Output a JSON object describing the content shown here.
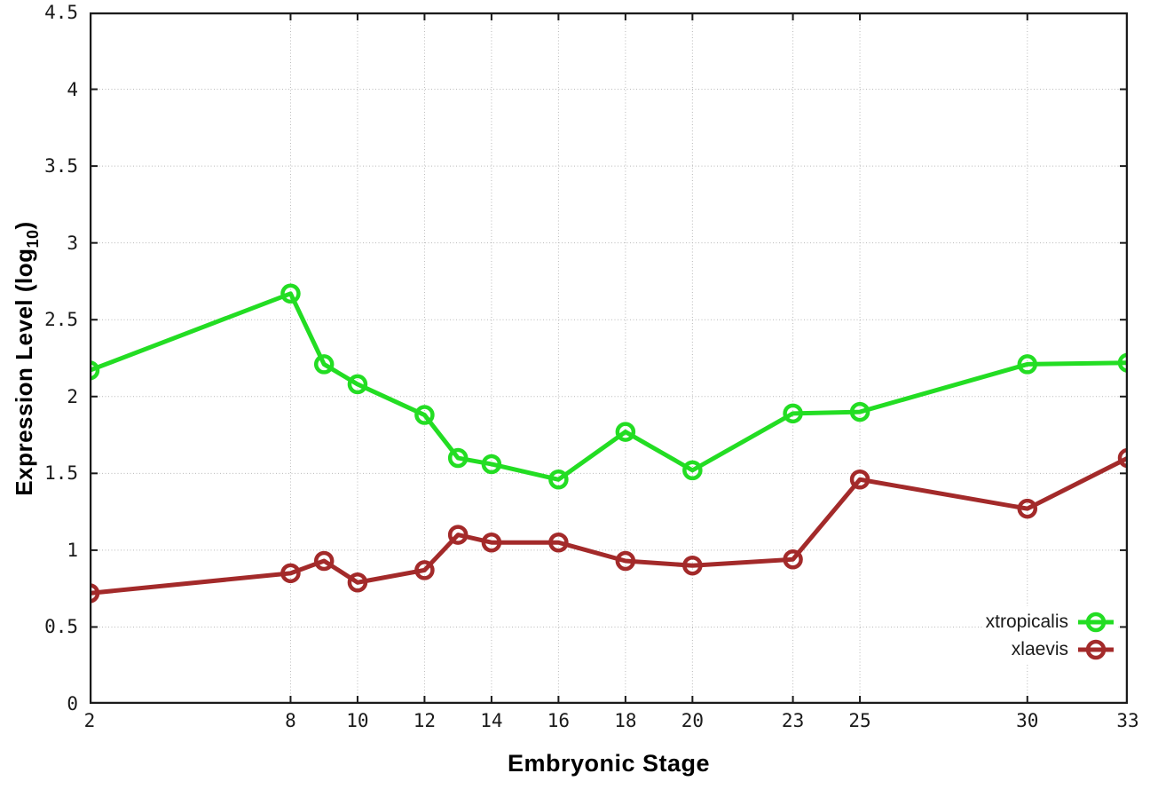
{
  "figure": {
    "background": "#ffffff",
    "axis_color": "#1a1a1a",
    "grid_color": "#b9b9b9"
  },
  "chart_data": {
    "type": "line",
    "title": "",
    "xlabel": "Embryonic Stage",
    "ylabel": "Expression Level (log10)",
    "ylabel_prefix": "Expression Level (log",
    "ylabel_sub": "10",
    "ylabel_suffix": ")",
    "xlim": [
      2,
      33
    ],
    "ylim": [
      0,
      4.5
    ],
    "grid": true,
    "legend_position": "bottom-right",
    "x": [
      2,
      8,
      9,
      10,
      12,
      13,
      14,
      16,
      18,
      20,
      23,
      25,
      30,
      33
    ],
    "xticks": [
      2,
      8,
      10,
      12,
      14,
      16,
      18,
      20,
      23,
      25,
      30,
      33
    ],
    "xtick_labels": [
      "2",
      "8",
      "10",
      "12",
      "14",
      "16",
      "18",
      "20",
      "23",
      "25",
      "30",
      "33"
    ],
    "yticks": [
      0,
      0.5,
      1,
      1.5,
      2,
      2.5,
      3,
      3.5,
      4,
      4.5
    ],
    "ytick_labels": [
      "0",
      "0.5",
      "1",
      "1.5",
      "2",
      "2.5",
      "3",
      "3.5",
      "4",
      "4.5"
    ],
    "series": [
      {
        "name": "xtropicalis",
        "color": "#23dd23",
        "values": [
          2.17,
          2.67,
          2.21,
          2.08,
          1.88,
          1.6,
          1.56,
          1.46,
          1.77,
          1.52,
          1.89,
          1.9,
          2.21,
          2.22
        ]
      },
      {
        "name": "xlaevis",
        "color": "#a32a2a",
        "values": [
          0.72,
          0.85,
          0.93,
          0.79,
          0.87,
          1.1,
          1.05,
          1.05,
          0.93,
          0.9,
          0.94,
          1.46,
          1.27,
          1.6
        ]
      }
    ]
  }
}
